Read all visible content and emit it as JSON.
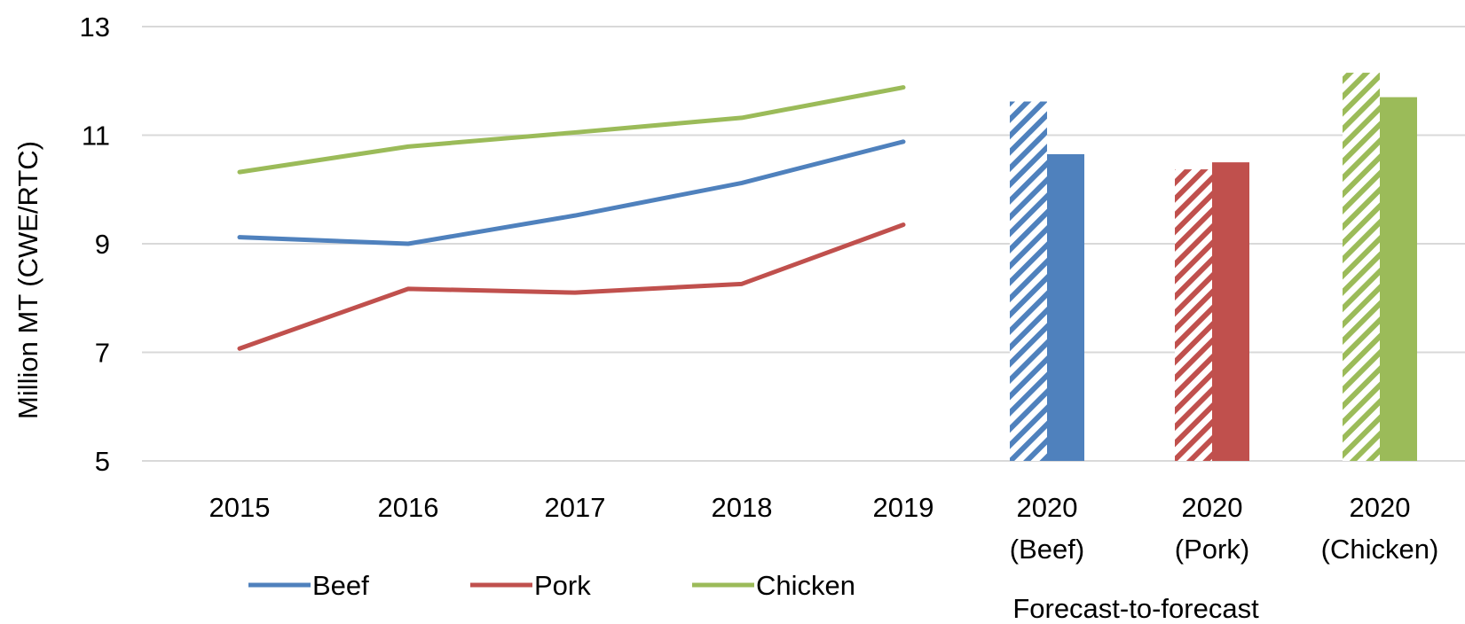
{
  "chart_data": {
    "type": "line",
    "ylabel": "Million MT (CWE/RTC)",
    "ylim": [
      5,
      13
    ],
    "yticks": [
      5,
      7,
      9,
      11,
      13
    ],
    "grid": true,
    "legend_position": "bottom-left",
    "categories": [
      "2015",
      "2016",
      "2017",
      "2018",
      "2019"
    ],
    "series": [
      {
        "name": "Beef",
        "color": "#4f81bd",
        "values": [
          9.12,
          9.0,
          9.52,
          10.12,
          10.88
        ]
      },
      {
        "name": "Pork",
        "color": "#c0504d",
        "values": [
          7.07,
          8.17,
          8.1,
          8.26,
          9.35
        ]
      },
      {
        "name": "Chicken",
        "color": "#9bbb59",
        "values": [
          10.32,
          10.79,
          11.05,
          11.32,
          11.88
        ]
      }
    ],
    "forecast": {
      "group_label": "Forecast-to-forecast",
      "bars": [
        {
          "label_line1": "2020",
          "label_line2": "(Beef)",
          "color": "#4f81bd",
          "hatched_value": 11.62,
          "solid_value": 10.65
        },
        {
          "label_line1": "2020",
          "label_line2": "(Pork)",
          "color": "#c0504d",
          "hatched_value": 10.37,
          "solid_value": 10.5
        },
        {
          "label_line1": "2020",
          "label_line2": "(Chicken)",
          "color": "#9bbb59",
          "hatched_value": 12.15,
          "solid_value": 11.7
        }
      ]
    }
  }
}
